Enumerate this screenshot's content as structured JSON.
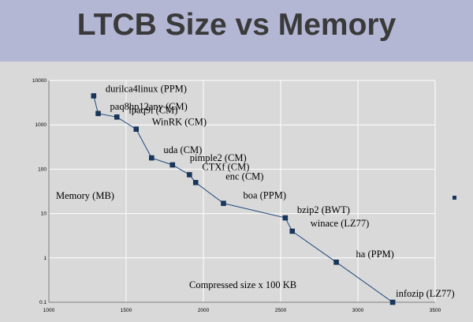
{
  "slide": {
    "title": "LTCB Size vs Memory"
  },
  "chart_data": {
    "type": "line",
    "xlabel": "Compressed size x 100 KB",
    "ylabel": "Memory (MB)",
    "xlim": [
      1000,
      3500
    ],
    "ylim": [
      0.1,
      10000
    ],
    "yscale": "log",
    "grid": true,
    "x_ticks": [
      "1000",
      "1500",
      "2000",
      "2500",
      "3000",
      "3500"
    ],
    "y_ticks": [
      "10000",
      "1000",
      "100",
      "10",
      "1",
      "0.1"
    ],
    "series_color": "#1f497d",
    "marker_color": "#17375e",
    "points": [
      {
        "label": "durilca4linux (PPM)",
        "x": 1290,
        "y": 4500
      },
      {
        "label": "paq8hp12any  (CM)",
        "x": 1319,
        "y": 1800
      },
      {
        "label": "lpaq9i (CM)",
        "x": 1440,
        "y": 1500
      },
      {
        "label": "WinRK (CM)",
        "x": 1565,
        "y": 800
      },
      {
        "label": "uda (CM)",
        "x": 1665,
        "y": 180
      },
      {
        "label": "pimple2 (CM)",
        "x": 1800,
        "y": 125
      },
      {
        "label": "CTXf (CM)",
        "x": 1910,
        "y": 75
      },
      {
        "label": "enc (CM)",
        "x": 1950,
        "y": 50
      },
      {
        "label": "boa (PPM)",
        "x": 2130,
        "y": 17
      },
      {
        "label": "bzip2 (BWT)",
        "x": 2530,
        "y": 8
      },
      {
        "label": "winace (LZ77)",
        "x": 2575,
        "y": 4
      },
      {
        "label": "ha (PPM)",
        "x": 2860,
        "y": 0.8
      },
      {
        "label": "infozip (LZ77)",
        "x": 3225,
        "y": 0.1
      }
    ]
  }
}
